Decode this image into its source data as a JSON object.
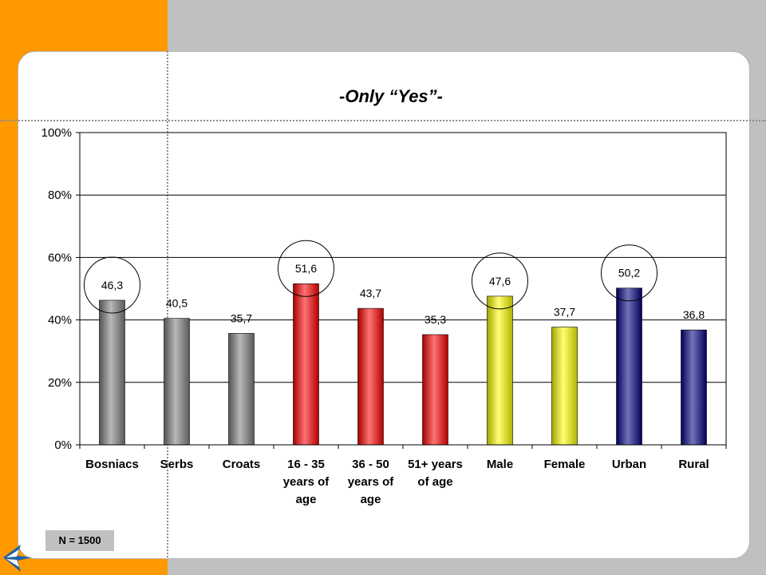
{
  "chart_data": {
    "type": "bar",
    "title": "-Only “Yes”-",
    "categories": [
      [
        "Bosniacs"
      ],
      [
        "Serbs"
      ],
      [
        "Croats"
      ],
      [
        "16 - 35",
        "years of",
        "age"
      ],
      [
        "36 - 50",
        "years of",
        "age"
      ],
      [
        "51+ years",
        "of age"
      ],
      [
        "Male"
      ],
      [
        "Female"
      ],
      [
        "Urban"
      ],
      [
        "Rural"
      ]
    ],
    "values": [
      46.3,
      40.5,
      35.7,
      51.6,
      43.7,
      35.3,
      47.6,
      37.7,
      50.2,
      36.8
    ],
    "value_labels": [
      "46,3",
      "40,5",
      "35,7",
      "51,6",
      "43,7",
      "35,3",
      "47,6",
      "37,7",
      "50,2",
      "36,8"
    ],
    "bar_colors": [
      "#808080",
      "#808080",
      "#808080",
      "#ff0000",
      "#ff0000",
      "#ff0000",
      "#ffff00",
      "#ffff00",
      "#000080",
      "#000080"
    ],
    "circled": [
      true,
      false,
      false,
      true,
      false,
      false,
      true,
      false,
      true,
      false
    ],
    "ylim": [
      0,
      100
    ],
    "y_ticks": [
      0,
      20,
      40,
      60,
      80,
      100
    ],
    "y_tick_labels": [
      "0%",
      "20%",
      "40%",
      "60%",
      "80%",
      "100%"
    ],
    "grid": true,
    "legend": "none"
  },
  "footer": {
    "sample_note": "N = 1500"
  }
}
